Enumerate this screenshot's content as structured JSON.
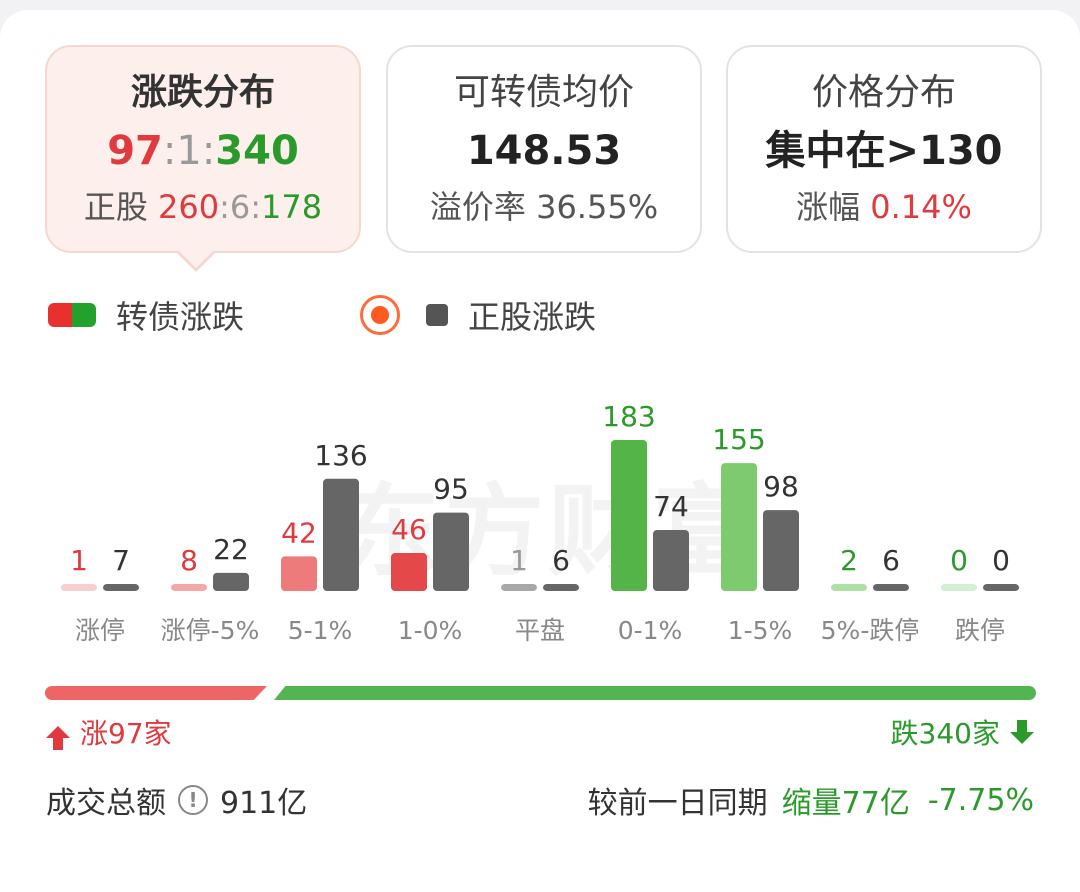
{
  "cards": {
    "distribution": {
      "title": "涨跌分布",
      "up": "97",
      "flat": "1",
      "down": "340",
      "stock_label": "正股",
      "stock_up": "260",
      "stock_flat": "6",
      "stock_down": "178"
    },
    "avg_price": {
      "title": "可转债均价",
      "value": "148.53",
      "premium_label": "溢价率",
      "premium_value": "36.55%"
    },
    "price_dist": {
      "title": "价格分布",
      "value": "集中在>130",
      "change_label": "涨幅",
      "change_value": "0.14%"
    }
  },
  "legend": {
    "bond_label": "转债涨跌",
    "stock_label": "正股涨跌"
  },
  "watermark": "东方财富",
  "chart_data": {
    "type": "bar",
    "categories": [
      "涨停",
      "涨停-5%",
      "5-1%",
      "1-0%",
      "平盘",
      "0-1%",
      "1-5%",
      "5%-跌停",
      "跌停"
    ],
    "series": [
      {
        "name": "转债涨跌",
        "values": [
          1,
          8,
          42,
          46,
          1,
          183,
          155,
          2,
          0
        ],
        "colors": [
          "#f7cfcf",
          "#f4a9a9",
          "#ee7b7b",
          "#e54848",
          "#a8a8a8",
          "#55b447",
          "#7dcb6e",
          "#aee0a4",
          "#d3eed0"
        ],
        "label_colors": [
          "#e0393e",
          "#e0393e",
          "#e0393e",
          "#e0393e",
          "#999999",
          "#2a9a2a",
          "#2a9a2a",
          "#2a9a2a",
          "#2a9a2a"
        ]
      },
      {
        "name": "正股涨跌",
        "values": [
          7,
          22,
          136,
          95,
          6,
          74,
          98,
          6,
          0
        ],
        "color": "#666666"
      }
    ]
  },
  "summary": {
    "up_text": "涨97家",
    "down_text": "跌340家",
    "up_ratio": 0.222
  },
  "footer": {
    "turnover_label": "成交总额",
    "turnover_value": "911亿",
    "compare_label": "较前一日同期",
    "compare_change": "缩量77亿",
    "compare_pct": "-7.75%"
  }
}
